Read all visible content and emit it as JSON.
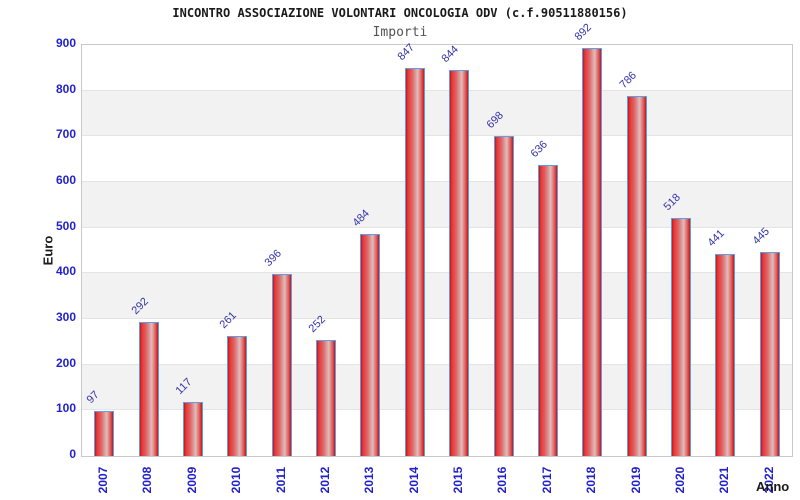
{
  "header": {
    "title": "INCONTRO ASSOCIAZIONE VOLONTARI ONCOLOGIA ODV (c.f.90511880156)",
    "subtitle": "Importi"
  },
  "chart_data": {
    "type": "bar",
    "title": "INCONTRO ASSOCIAZIONE VOLONTARI ONCOLOGIA ODV (c.f.90511880156)",
    "subtitle": "Importi",
    "xlabel": "Anno",
    "ylabel": "Euro",
    "categories": [
      "2007",
      "2008",
      "2009",
      "2010",
      "2011",
      "2012",
      "2013",
      "2014",
      "2015",
      "2016",
      "2017",
      "2018",
      "2019",
      "2020",
      "2021",
      "2022"
    ],
    "values": [
      97,
      292,
      117,
      261,
      396,
      252,
      484,
      847,
      844,
      698,
      636,
      892,
      786,
      518,
      441,
      445
    ],
    "ylim": [
      0,
      900
    ],
    "ytick_step": 100,
    "yticks": [
      0,
      100,
      200,
      300,
      400,
      500,
      600,
      700,
      800,
      900
    ],
    "grid": "horizontal-bands",
    "legend": "none",
    "colors": {
      "bar_fill": "#e03030",
      "bar_highlight": "#dfbcbc",
      "bar_border": "#58a0e8",
      "axis_tick_text": "#2222cc",
      "value_label_text": "#3434a8",
      "band_fill": "#f2f2f2",
      "gridline": "#e4e4e4",
      "plot_border": "#c9c9c9",
      "title_text": "#1a1a1a",
      "subtitle_text": "#555555"
    }
  }
}
